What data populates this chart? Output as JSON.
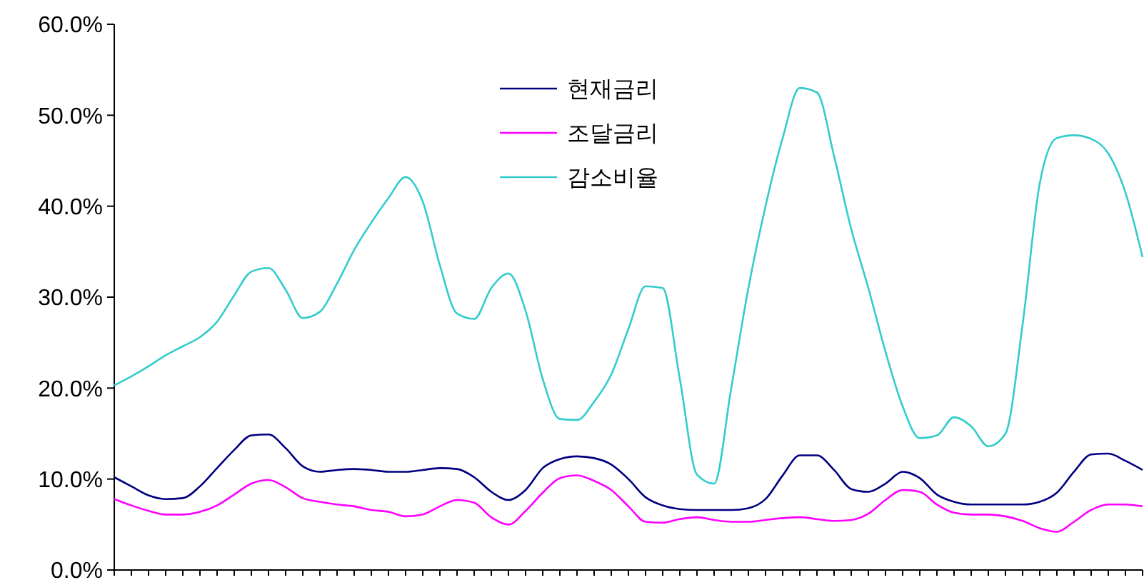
{
  "chart_data": {
    "type": "line",
    "categories": [
      null,
      null,
      null,
      null,
      null,
      null,
      null,
      null,
      null,
      null,
      null,
      null,
      null,
      null,
      null,
      null,
      null,
      null,
      null,
      null,
      null,
      null,
      null,
      null,
      null,
      null,
      null,
      null,
      null,
      null,
      null,
      null,
      null,
      null,
      null,
      null,
      null,
      null,
      null,
      null,
      null,
      null,
      null,
      null,
      null,
      null,
      null,
      null,
      null,
      null,
      null,
      null,
      null,
      null,
      null,
      null,
      null,
      null,
      null,
      null,
      null
    ],
    "series": [
      {
        "name": "현재금리",
        "color": "#000080",
        "values": [
          10.2,
          9.2,
          8.2,
          7.8,
          7.9,
          9.2,
          11.2,
          13.2,
          14.8,
          14.9,
          13.4,
          11.4,
          10.8,
          11,
          11.1,
          11,
          10.8,
          10.8,
          11,
          11.2,
          11.1,
          10.2,
          8.6,
          7.7,
          8.8,
          11.2,
          12.2,
          12.5,
          12.3,
          11.6,
          10,
          8,
          7.1,
          6.7,
          6.6,
          6.6,
          6.6,
          6.8,
          7.8,
          10.4,
          12.6,
          12.6,
          11,
          8.9,
          8.6,
          9.5,
          10.8,
          10.1,
          8.3,
          7.5,
          7.2,
          7.2,
          7.2,
          7.2,
          7.5,
          8.5,
          10.8,
          12.7,
          12.8,
          12,
          11
        ]
      },
      {
        "name": "조달금리",
        "color": "#ff00ff",
        "values": [
          7.8,
          7.1,
          6.5,
          6.1,
          6.1,
          6.4,
          7.1,
          8.3,
          9.5,
          9.9,
          9.1,
          7.9,
          7.5,
          7.2,
          7,
          6.6,
          6.4,
          5.9,
          6.1,
          7,
          7.7,
          7.4,
          5.8,
          5,
          6.5,
          8.5,
          10.1,
          10.4,
          9.8,
          8.8,
          7,
          5.3,
          5.2,
          5.6,
          5.8,
          5.5,
          5.3,
          5.3,
          5.5,
          5.7,
          5.8,
          5.6,
          5.4,
          5.5,
          6.2,
          7.7,
          8.8,
          8.6,
          7.2,
          6.3,
          6.1,
          6.1,
          5.9,
          5.4,
          4.6,
          4.2,
          5.3,
          6.6,
          7.2,
          7.2,
          7
        ]
      },
      {
        "name": "감소비율",
        "color": "#33cccc",
        "values": [
          20.3,
          21.3,
          22.4,
          23.6,
          24.6,
          25.6,
          27.3,
          30.2,
          32.8,
          33.2,
          30.8,
          27.7,
          28.4,
          31.5,
          35.2,
          38.2,
          40.9,
          43.2,
          40.5,
          33.5,
          28.2,
          27.6,
          31,
          32.6,
          28.5,
          21,
          16.6,
          16.5,
          18.5,
          21.5,
          26.5,
          31.2,
          31,
          21,
          10.5,
          9.5,
          20,
          31,
          40,
          47.5,
          53,
          52.5,
          45.5,
          37.5,
          31,
          24,
          18,
          14.5,
          14.8,
          16.8,
          15.8,
          13.6,
          15,
          27,
          42.5,
          47.5,
          47.8,
          47.4,
          45.8,
          41.5,
          34.4
        ]
      }
    ],
    "ylim": [
      0,
      60
    ],
    "yticks": [
      {
        "value": 0,
        "label": "0.0%"
      },
      {
        "value": 10,
        "label": "10.0%"
      },
      {
        "value": 20,
        "label": "20.0%"
      },
      {
        "value": 30,
        "label": "30.0%"
      },
      {
        "value": 40,
        "label": "40.0%"
      },
      {
        "value": 50,
        "label": "50.0%"
      },
      {
        "value": 60,
        "label": "60.0%"
      }
    ],
    "legend": "top",
    "tick_labels": "y",
    "marker": "none",
    "line_style": "solid"
  }
}
